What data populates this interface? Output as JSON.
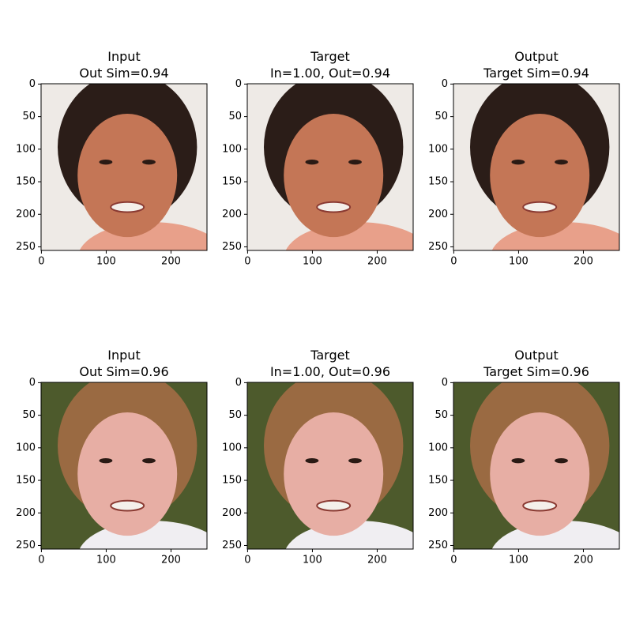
{
  "chart_data": [
    {
      "type": "image",
      "title": "Input",
      "subtitle": "Out Sim=0.94",
      "xlim": [
        -0.5,
        255.5
      ],
      "ylim": [
        255.5,
        -0.5
      ],
      "xticks": [
        0,
        100,
        200
      ],
      "yticks": [
        0,
        50,
        100,
        150,
        200,
        250
      ]
    },
    {
      "type": "image",
      "title": "Target",
      "subtitle": "In=1.00, Out=0.94",
      "xlim": [
        -0.5,
        255.5
      ],
      "ylim": [
        255.5,
        -0.5
      ],
      "xticks": [
        0,
        100,
        200
      ],
      "yticks": [
        0,
        50,
        100,
        150,
        200,
        250
      ]
    },
    {
      "type": "image",
      "title": "Output",
      "subtitle": "Target Sim=0.94",
      "xlim": [
        -0.5,
        255.5
      ],
      "ylim": [
        255.5,
        -0.5
      ],
      "xticks": [
        0,
        100,
        200
      ],
      "yticks": [
        0,
        50,
        100,
        150,
        200,
        250
      ]
    },
    {
      "type": "image",
      "title": "Input",
      "subtitle": "Out Sim=0.96",
      "xlim": [
        -0.5,
        255.5
      ],
      "ylim": [
        255.5,
        -0.5
      ],
      "xticks": [
        0,
        100,
        200
      ],
      "yticks": [
        0,
        50,
        100,
        150,
        200,
        250
      ]
    },
    {
      "type": "image",
      "title": "Target",
      "subtitle": "In=1.00, Out=0.96",
      "xlim": [
        -0.5,
        255.5
      ],
      "ylim": [
        255.5,
        -0.5
      ],
      "xticks": [
        0,
        100,
        200
      ],
      "yticks": [
        0,
        50,
        100,
        150,
        200,
        250
      ]
    },
    {
      "type": "image",
      "title": "Output",
      "subtitle": "Target Sim=0.96",
      "xlim": [
        -0.5,
        255.5
      ],
      "ylim": [
        255.5,
        -0.5
      ],
      "xticks": [
        0,
        100,
        200
      ],
      "yticks": [
        0,
        50,
        100,
        150,
        200,
        250
      ]
    }
  ]
}
